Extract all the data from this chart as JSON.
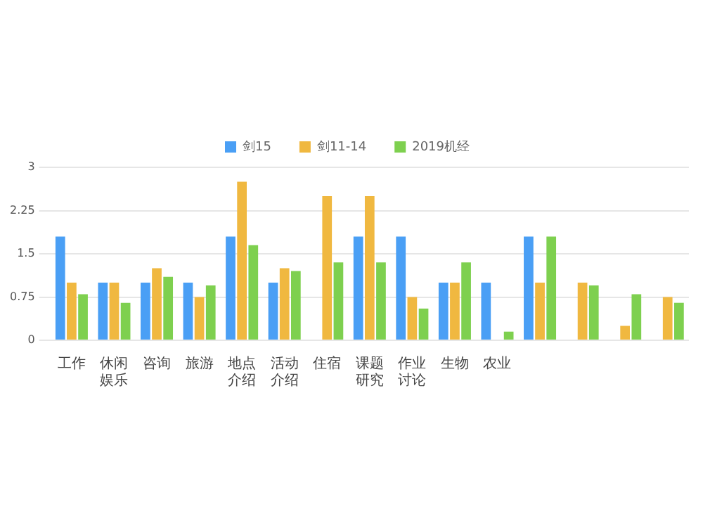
{
  "chart_data": {
    "type": "bar",
    "categories": [
      "工作",
      "休闲娱乐",
      "咨询",
      "旅游",
      "地点介绍",
      "活动介绍",
      "住宿",
      "课题研究",
      "作业讨论",
      "生物",
      "农业",
      null,
      null,
      null,
      null
    ],
    "series": [
      {
        "name": "剑15",
        "color": "#4a9ff5",
        "values": [
          1.8,
          1,
          1,
          1,
          1.8,
          1,
          null,
          1.8,
          1.8,
          1,
          1,
          1.8,
          null,
          null,
          null
        ]
      },
      {
        "name": "剑11-14",
        "color": "#f0b840",
        "values": [
          1,
          1,
          1.25,
          0.75,
          2.75,
          1.25,
          2.5,
          2.5,
          0.75,
          1,
          null,
          1,
          1,
          0.25,
          0.75
        ]
      },
      {
        "name": "2019机经",
        "color": "#7ed04f",
        "values": [
          0.8,
          0.65,
          1.1,
          0.95,
          1.65,
          1.2,
          1.35,
          1.35,
          0.55,
          1.35,
          0.15,
          1.8,
          0.95,
          0.8,
          0.65
        ]
      }
    ],
    "ylim": [
      0,
      3
    ],
    "yticks": [
      0,
      0.75,
      1.5,
      2.25,
      3
    ],
    "grid": "y",
    "legend": "top"
  }
}
